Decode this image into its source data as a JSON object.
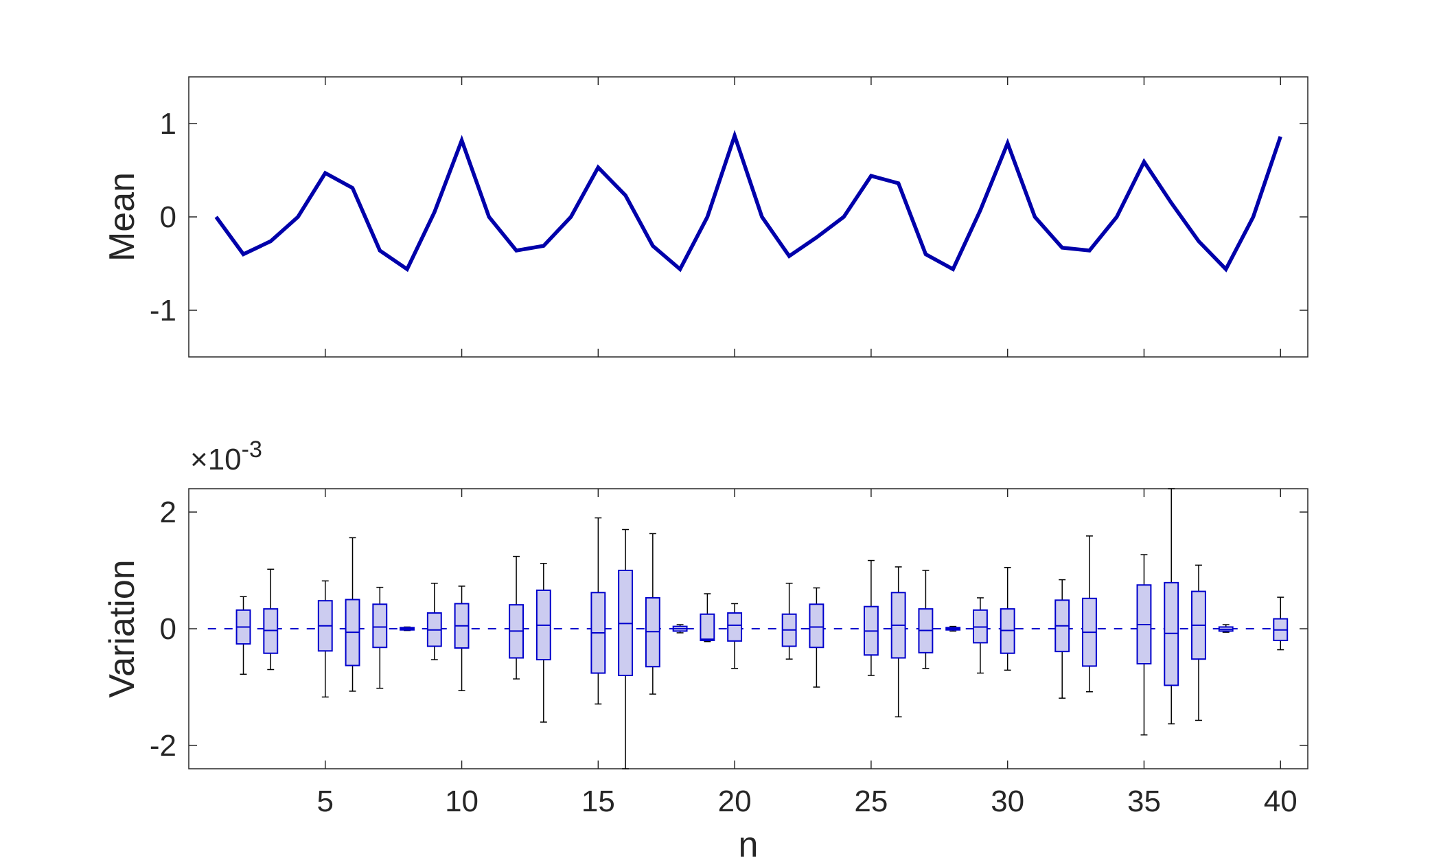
{
  "colors": {
    "line": "#0000aa",
    "box_fill": "#ccccf0",
    "box_edge": "#0000cc",
    "whisker": "#000000",
    "axes": "#262626"
  },
  "chart_data": [
    {
      "type": "line",
      "ylabel": "Mean",
      "xlim": [
        0,
        41
      ],
      "ylim": [
        -1.5,
        1.5
      ],
      "xticks": [
        5,
        10,
        15,
        20,
        25,
        30,
        35,
        40
      ],
      "yticks": [
        -1,
        0,
        1
      ],
      "ytick_labels": [
        "-1",
        "0",
        "1"
      ],
      "show_xtick_labels": false,
      "grid": false,
      "x": [
        1,
        2,
        3,
        4,
        5,
        6,
        7,
        8,
        9,
        10,
        11,
        12,
        13,
        14,
        15,
        16,
        17,
        18,
        19,
        20,
        21,
        22,
        23,
        24,
        25,
        26,
        27,
        28,
        29,
        30,
        31,
        32,
        33,
        34,
        35,
        36,
        37,
        38,
        39,
        40
      ],
      "series": [
        {
          "values": [
            0.0,
            -0.4,
            -0.26,
            0.0,
            0.47,
            0.31,
            -0.36,
            -0.56,
            0.05,
            0.82,
            0.0,
            -0.36,
            -0.31,
            0.0,
            0.53,
            0.23,
            -0.31,
            -0.56,
            0.0,
            0.87,
            0.0,
            -0.42,
            -0.22,
            0.0,
            0.44,
            0.36,
            -0.4,
            -0.56,
            0.07,
            0.79,
            0.0,
            -0.33,
            -0.36,
            0.0,
            0.59,
            0.15,
            -0.26,
            -0.56,
            0.0,
            0.86
          ]
        }
      ]
    },
    {
      "type": "box",
      "xlabel": "n",
      "ylabel": "Variation",
      "exponent_label": "×10",
      "exponent_power": "-3",
      "xlim": [
        0,
        41
      ],
      "ylim": [
        -2.4,
        2.4
      ],
      "xticks": [
        5,
        10,
        15,
        20,
        25,
        30,
        35,
        40
      ],
      "xtick_labels": [
        "5",
        "10",
        "15",
        "20",
        "25",
        "30",
        "35",
        "40"
      ],
      "yticks": [
        -2,
        0,
        2
      ],
      "ytick_labels": [
        "-2",
        "0",
        "2"
      ],
      "grid": false,
      "boxes": [
        {
          "x": 1,
          "flat": true
        },
        {
          "x": 2,
          "min": -0.78,
          "q1": -0.26,
          "median": 0.03,
          "q3": 0.32,
          "max": 0.55
        },
        {
          "x": 3,
          "min": -0.7,
          "q1": -0.42,
          "median": -0.03,
          "q3": 0.34,
          "max": 1.02
        },
        {
          "x": 4,
          "flat": true
        },
        {
          "x": 5,
          "min": -1.17,
          "q1": -0.38,
          "median": 0.05,
          "q3": 0.48,
          "max": 0.82
        },
        {
          "x": 6,
          "min": -1.07,
          "q1": -0.63,
          "median": -0.06,
          "q3": 0.5,
          "max": 1.56
        },
        {
          "x": 7,
          "min": -1.02,
          "q1": -0.32,
          "median": 0.03,
          "q3": 0.42,
          "max": 0.71
        },
        {
          "x": 8,
          "min": -0.03,
          "q1": -0.02,
          "median": 0.0,
          "q3": 0.02,
          "max": 0.03
        },
        {
          "x": 9,
          "min": -0.53,
          "q1": -0.3,
          "median": -0.02,
          "q3": 0.27,
          "max": 0.78
        },
        {
          "x": 10,
          "min": -1.06,
          "q1": -0.33,
          "median": 0.05,
          "q3": 0.43,
          "max": 0.73
        },
        {
          "x": 11,
          "flat": true
        },
        {
          "x": 12,
          "min": -0.86,
          "q1": -0.5,
          "median": -0.04,
          "q3": 0.41,
          "max": 1.24
        },
        {
          "x": 13,
          "min": -1.6,
          "q1": -0.53,
          "median": 0.06,
          "q3": 0.66,
          "max": 1.12
        },
        {
          "x": 14,
          "flat": true
        },
        {
          "x": 15,
          "min": -1.29,
          "q1": -0.76,
          "median": -0.07,
          "q3": 0.62,
          "max": 1.9
        },
        {
          "x": 16,
          "min": -2.4,
          "q1": -0.8,
          "median": 0.09,
          "q3": 1.0,
          "max": 1.7
        },
        {
          "x": 17,
          "min": -1.12,
          "q1": -0.65,
          "median": -0.05,
          "q3": 0.53,
          "max": 1.63
        },
        {
          "x": 18,
          "min": -0.07,
          "q1": -0.04,
          "median": 0.0,
          "q3": 0.04,
          "max": 0.07
        },
        {
          "x": 19,
          "min": -0.22,
          "q1": -0.2,
          "median": -0.18,
          "q3": 0.25,
          "max": 0.6
        },
        {
          "x": 20,
          "min": -0.68,
          "q1": -0.21,
          "median": 0.06,
          "q3": 0.27,
          "max": 0.43
        },
        {
          "x": 21,
          "flat": true
        },
        {
          "x": 22,
          "min": -0.52,
          "q1": -0.3,
          "median": -0.02,
          "q3": 0.25,
          "max": 0.78
        },
        {
          "x": 23,
          "min": -1.0,
          "q1": -0.32,
          "median": 0.03,
          "q3": 0.42,
          "max": 0.7
        },
        {
          "x": 24,
          "flat": true
        },
        {
          "x": 25,
          "min": -0.8,
          "q1": -0.45,
          "median": -0.04,
          "q3": 0.38,
          "max": 1.17
        },
        {
          "x": 26,
          "min": -1.51,
          "q1": -0.5,
          "median": 0.06,
          "q3": 0.62,
          "max": 1.06
        },
        {
          "x": 27,
          "min": -0.68,
          "q1": -0.41,
          "median": -0.03,
          "q3": 0.34,
          "max": 1.0
        },
        {
          "x": 28,
          "min": -0.04,
          "q1": -0.02,
          "median": 0.0,
          "q3": 0.02,
          "max": 0.04
        },
        {
          "x": 29,
          "min": -0.76,
          "q1": -0.24,
          "median": 0.03,
          "q3": 0.32,
          "max": 0.53
        },
        {
          "x": 30,
          "min": -0.71,
          "q1": -0.42,
          "median": -0.03,
          "q3": 0.34,
          "max": 1.05
        },
        {
          "x": 31,
          "flat": true
        },
        {
          "x": 32,
          "min": -1.19,
          "q1": -0.39,
          "median": 0.05,
          "q3": 0.49,
          "max": 0.84
        },
        {
          "x": 33,
          "min": -1.08,
          "q1": -0.64,
          "median": -0.06,
          "q3": 0.52,
          "max": 1.59
        },
        {
          "x": 34,
          "flat": true
        },
        {
          "x": 35,
          "min": -1.82,
          "q1": -0.6,
          "median": 0.07,
          "q3": 0.75,
          "max": 1.27
        },
        {
          "x": 36,
          "min": -1.63,
          "q1": -0.97,
          "median": -0.08,
          "q3": 0.79,
          "max": 2.4
        },
        {
          "x": 37,
          "min": -1.57,
          "q1": -0.52,
          "median": 0.06,
          "q3": 0.64,
          "max": 1.09
        },
        {
          "x": 38,
          "min": -0.06,
          "q1": -0.04,
          "median": -0.01,
          "q3": 0.03,
          "max": 0.07
        },
        {
          "x": 39,
          "flat": true
        },
        {
          "x": 40,
          "min": -0.36,
          "q1": -0.2,
          "median": -0.02,
          "q3": 0.17,
          "max": 0.54
        }
      ]
    }
  ]
}
